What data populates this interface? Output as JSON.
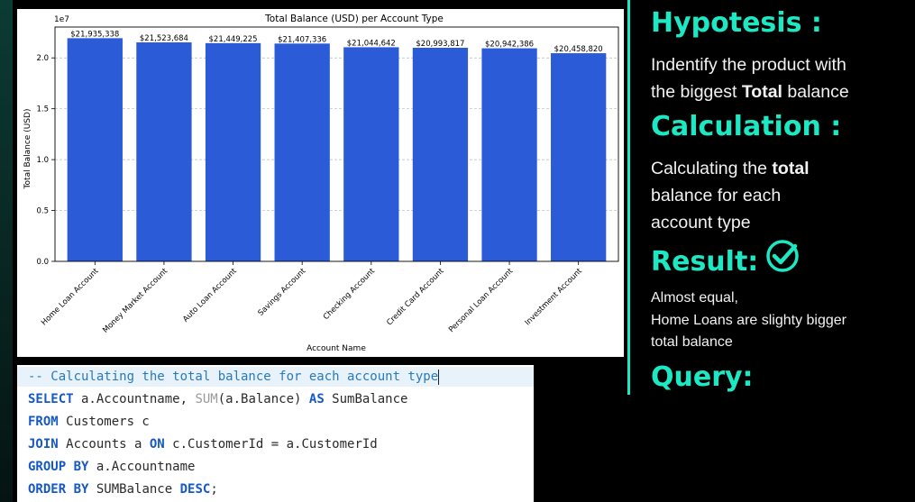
{
  "chart_data": {
    "type": "bar",
    "title": "Total Balance (USD) per Account Type",
    "xlabel": "Account Name",
    "ylabel": "Total Balance (USD)",
    "y_multiplier": "1e7",
    "categories": [
      "Home Loan Account",
      "Money Market Account",
      "Auto Loan Account",
      "Savings Account",
      "Checking Account",
      "Credit Card Account",
      "Personal Loan Account",
      "Investment Account"
    ],
    "values": [
      21935338,
      21523684,
      21449225,
      21407336,
      21044642,
      20993817,
      20942386,
      20458820
    ],
    "value_labels": [
      "$21,935,338",
      "$21,523,684",
      "$21,449,225",
      "$21,407,336",
      "$21,044,642",
      "$20,993,817",
      "$20,942,386",
      "$20,458,820"
    ],
    "yticks": [
      "0.0",
      "0.5",
      "1.0",
      "1.5",
      "2.0"
    ],
    "ytick_values": [
      0,
      5000000,
      10000000,
      15000000,
      20000000
    ],
    "ylim": [
      0,
      23031105
    ],
    "bar_color": "#2b5bd7",
    "grid": "horizontal dashed",
    "legend": "none"
  },
  "query": {
    "comment": "-- Calculating the total balance for each account type",
    "line2": {
      "kw1": "SELECT",
      "t1": " a.Accountname, ",
      "fn": "SUM",
      "t2": "(a.Balance) ",
      "kw2": "AS",
      "t3": " SumBalance"
    },
    "line3": {
      "kw1": "FROM",
      "t1": " Customers c"
    },
    "line4": {
      "kw1": "JOIN",
      "t1": " Accounts a ",
      "kw2": "ON",
      "t2": " c.CustomerId = a.CustomerId"
    },
    "line5": {
      "kw1": "GROUP BY",
      "t1": " a.Accountname"
    },
    "line6": {
      "kw1": "ORDER BY",
      "t1": " SUMBalance ",
      "kw2": "DESC",
      "t2": ";"
    }
  },
  "sidebar": {
    "hypothesis_heading": "Hypotesis :",
    "hypothesis_text_1": "Indentify the product with",
    "hypothesis_text_2a": "the biggest ",
    "hypothesis_text_2b": "Total",
    "hypothesis_text_2c": " balance",
    "calculation_heading": "Calculation :",
    "calculation_text_1a": "Calculating the ",
    "calculation_text_1b": "total",
    "calculation_text_2": "balance for each",
    "calculation_text_3": "account type",
    "result_heading": "Result:",
    "result_text_1": "Almost equal,",
    "result_text_2": "Home Loans are slighty bigger",
    "result_text_3": "total balance",
    "query_heading": "Query:"
  },
  "colors": {
    "accent": "#1ce8c4",
    "background": "#000000",
    "bar": "#2b5bd7"
  }
}
